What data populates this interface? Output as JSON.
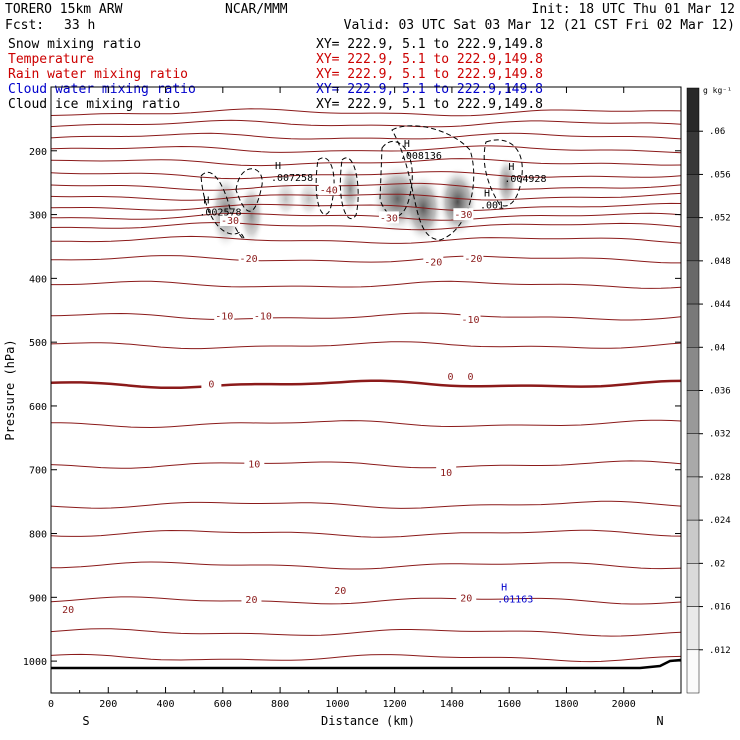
{
  "header": {
    "model": "TORERO  15km ARW",
    "center": "NCAR/MMM",
    "init": "Init: 18 UTC Thu 01 Mar 12",
    "fcst_label": "Fcst:",
    "fcst_value": "33 h",
    "valid": "Valid: 03 UTC Sat 03 Mar 12 (21 CST Fri 02 Mar 12)"
  },
  "legend": [
    {
      "name": "Snow mixing ratio",
      "xy": "XY= 222.9,  5.1 to 222.9,149.8",
      "color": "#000000"
    },
    {
      "name": "Temperature",
      "xy": "XY= 222.9,  5.1 to 222.9,149.8",
      "color": "#cc0000"
    },
    {
      "name": "Rain water mixing ratio",
      "xy": "XY= 222.9,  5.1 to 222.9,149.8",
      "color": "#cc0000"
    },
    {
      "name": "Cloud water mixing ratio",
      "xy": "XY= 222.9,  5.1 to 222.9,149.8",
      "color": "#0000cc"
    },
    {
      "name": "Cloud ice mixing ratio",
      "xy": "XY= 222.9,  5.1 to 222.9,149.8",
      "color": "#000000"
    }
  ],
  "chart_data": {
    "type": "cross-section contour",
    "xlabel": "Distance (km)",
    "ylabel": "Pressure (hPa)",
    "xlim": [
      0,
      2200
    ],
    "ylim": [
      1050,
      100
    ],
    "x_ticks": [
      0,
      200,
      400,
      600,
      800,
      1000,
      1200,
      1400,
      1600,
      1800,
      2000
    ],
    "y_ticks": [
      200,
      300,
      400,
      500,
      600,
      700,
      800,
      900,
      1000
    ],
    "x_end_labels": {
      "left": "S",
      "right": "N"
    },
    "colorbar": {
      "unit": "g kg⁻¹",
      "ticks": [
        ".06",
        ".056",
        ".052",
        ".048",
        ".044",
        ".04",
        ".036",
        ".032",
        ".028",
        ".024",
        ".02",
        ".016",
        ".012"
      ]
    },
    "temperature_labels": [
      {
        "text": "-30",
        "x": 625,
        "p": 310
      },
      {
        "text": "-20",
        "x": 690,
        "p": 370
      },
      {
        "text": "-40",
        "x": 970,
        "p": 262
      },
      {
        "text": "-30",
        "x": 1180,
        "p": 306
      },
      {
        "text": "-30",
        "x": 1440,
        "p": 301
      },
      {
        "text": "-20",
        "x": 1335,
        "p": 375
      },
      {
        "text": "-20",
        "x": 1475,
        "p": 370
      },
      {
        "text": "-10",
        "x": 605,
        "p": 460
      },
      {
        "text": "-10",
        "x": 740,
        "p": 460
      },
      {
        "text": "-10",
        "x": 1465,
        "p": 465
      },
      {
        "text": "0",
        "x": 560,
        "p": 566
      },
      {
        "text": "0",
        "x": 1395,
        "p": 555
      },
      {
        "text": "0",
        "x": 1465,
        "p": 555
      },
      {
        "text": "10",
        "x": 710,
        "p": 692
      },
      {
        "text": "10",
        "x": 1380,
        "p": 705
      },
      {
        "text": "20",
        "x": 60,
        "p": 920
      },
      {
        "text": "20",
        "x": 700,
        "p": 904
      },
      {
        "text": "20",
        "x": 1010,
        "p": 890
      },
      {
        "text": "20",
        "x": 1450,
        "p": 902
      }
    ],
    "maxima_labels": [
      {
        "text": ".002578",
        "x": 560,
        "p": 298,
        "color": "#000000"
      },
      {
        "text": ".007258",
        "x": 810,
        "p": 244,
        "color": "#000000"
      },
      {
        "text": ".008136",
        "x": 1260,
        "p": 210,
        "color": "#000000"
      },
      {
        "text": ".004928",
        "x": 1625,
        "p": 246,
        "color": "#000000"
      },
      {
        "text": ".001",
        "x": 1540,
        "p": 287,
        "color": "#000000"
      },
      {
        "text": ".01163",
        "x": 1600,
        "p": 905,
        "color": "#0000cc"
      }
    ],
    "snow_blobs": [
      {
        "x": 610,
        "p": 295,
        "rx": 55,
        "rp": 60,
        "intensity": 0.6
      },
      {
        "x": 700,
        "p": 300,
        "rx": 45,
        "rp": 50,
        "intensity": 0.55
      },
      {
        "x": 820,
        "p": 275,
        "rx": 40,
        "rp": 30,
        "intensity": 0.3
      },
      {
        "x": 900,
        "p": 275,
        "rx": 40,
        "rp": 30,
        "intensity": 0.3
      },
      {
        "x": 1045,
        "p": 260,
        "rx": 35,
        "rp": 40,
        "intensity": 0.55
      },
      {
        "x": 1210,
        "p": 275,
        "rx": 90,
        "rp": 55,
        "intensity": 0.75
      },
      {
        "x": 1300,
        "p": 290,
        "rx": 70,
        "rp": 55,
        "intensity": 0.8
      },
      {
        "x": 1420,
        "p": 280,
        "rx": 70,
        "rp": 55,
        "intensity": 0.85
      },
      {
        "x": 1590,
        "p": 250,
        "rx": 35,
        "rp": 40,
        "intensity": 0.6
      }
    ],
    "isotherms": [
      {
        "p": 140,
        "w": 1
      },
      {
        "p": 158,
        "w": 1
      },
      {
        "p": 178,
        "w": 1
      },
      {
        "p": 198,
        "w": 1
      },
      {
        "p": 218,
        "w": 1
      },
      {
        "p": 238,
        "w": 1
      },
      {
        "p": 256,
        "w": 1
      },
      {
        "p": 272,
        "w": 1
      },
      {
        "p": 288,
        "w": 1
      },
      {
        "p": 303,
        "w": 1
      },
      {
        "p": 318,
        "w": 1
      },
      {
        "p": 340,
        "w": 1
      },
      {
        "p": 370,
        "w": 1
      },
      {
        "p": 410,
        "w": 1
      },
      {
        "p": 460,
        "w": 1
      },
      {
        "p": 505,
        "w": 1
      },
      {
        "p": 566,
        "w": 2.5
      },
      {
        "p": 628,
        "w": 1
      },
      {
        "p": 692,
        "w": 1
      },
      {
        "p": 755,
        "w": 1
      },
      {
        "p": 800,
        "w": 1
      },
      {
        "p": 850,
        "w": 1
      },
      {
        "p": 905,
        "w": 1
      },
      {
        "p": 955,
        "w": 1
      },
      {
        "p": 995,
        "w": 1
      }
    ]
  }
}
